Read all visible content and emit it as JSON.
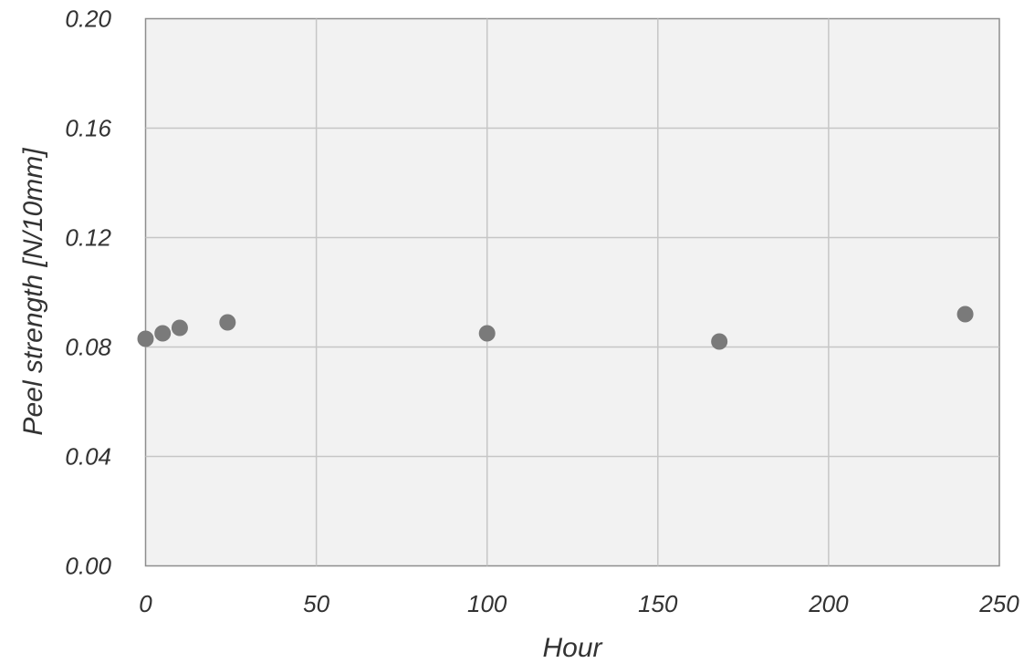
{
  "chart_data": {
    "type": "scatter",
    "title": "",
    "xlabel": "Hour",
    "ylabel": "Peel strength [N/10mm]",
    "xlim": [
      0,
      250
    ],
    "ylim": [
      0,
      0.2
    ],
    "x_ticks": [
      0,
      50,
      100,
      150,
      200,
      250
    ],
    "x_tick_labels": [
      "0",
      "50",
      "100",
      "150",
      "200",
      "250"
    ],
    "y_ticks": [
      0,
      0.04,
      0.08,
      0.12,
      0.16,
      0.2
    ],
    "y_tick_labels": [
      "0.00",
      "0.04",
      "0.08",
      "0.12",
      "0.16",
      "0.20"
    ],
    "grid": true,
    "legend": "none",
    "series": [
      {
        "color": "#7a7a7a",
        "points": [
          {
            "x": 0,
            "y": 0.083
          },
          {
            "x": 5,
            "y": 0.085
          },
          {
            "x": 10,
            "y": 0.087
          },
          {
            "x": 24,
            "y": 0.089
          },
          {
            "x": 100,
            "y": 0.085
          },
          {
            "x": 168,
            "y": 0.082
          },
          {
            "x": 240,
            "y": 0.092
          }
        ]
      }
    ]
  },
  "colors": {
    "plot_background": "#f2f2f2",
    "grid": "#c6c6c6",
    "frame": "#8e8e8e",
    "marker": "#7a7a7a",
    "text": "#333333"
  }
}
